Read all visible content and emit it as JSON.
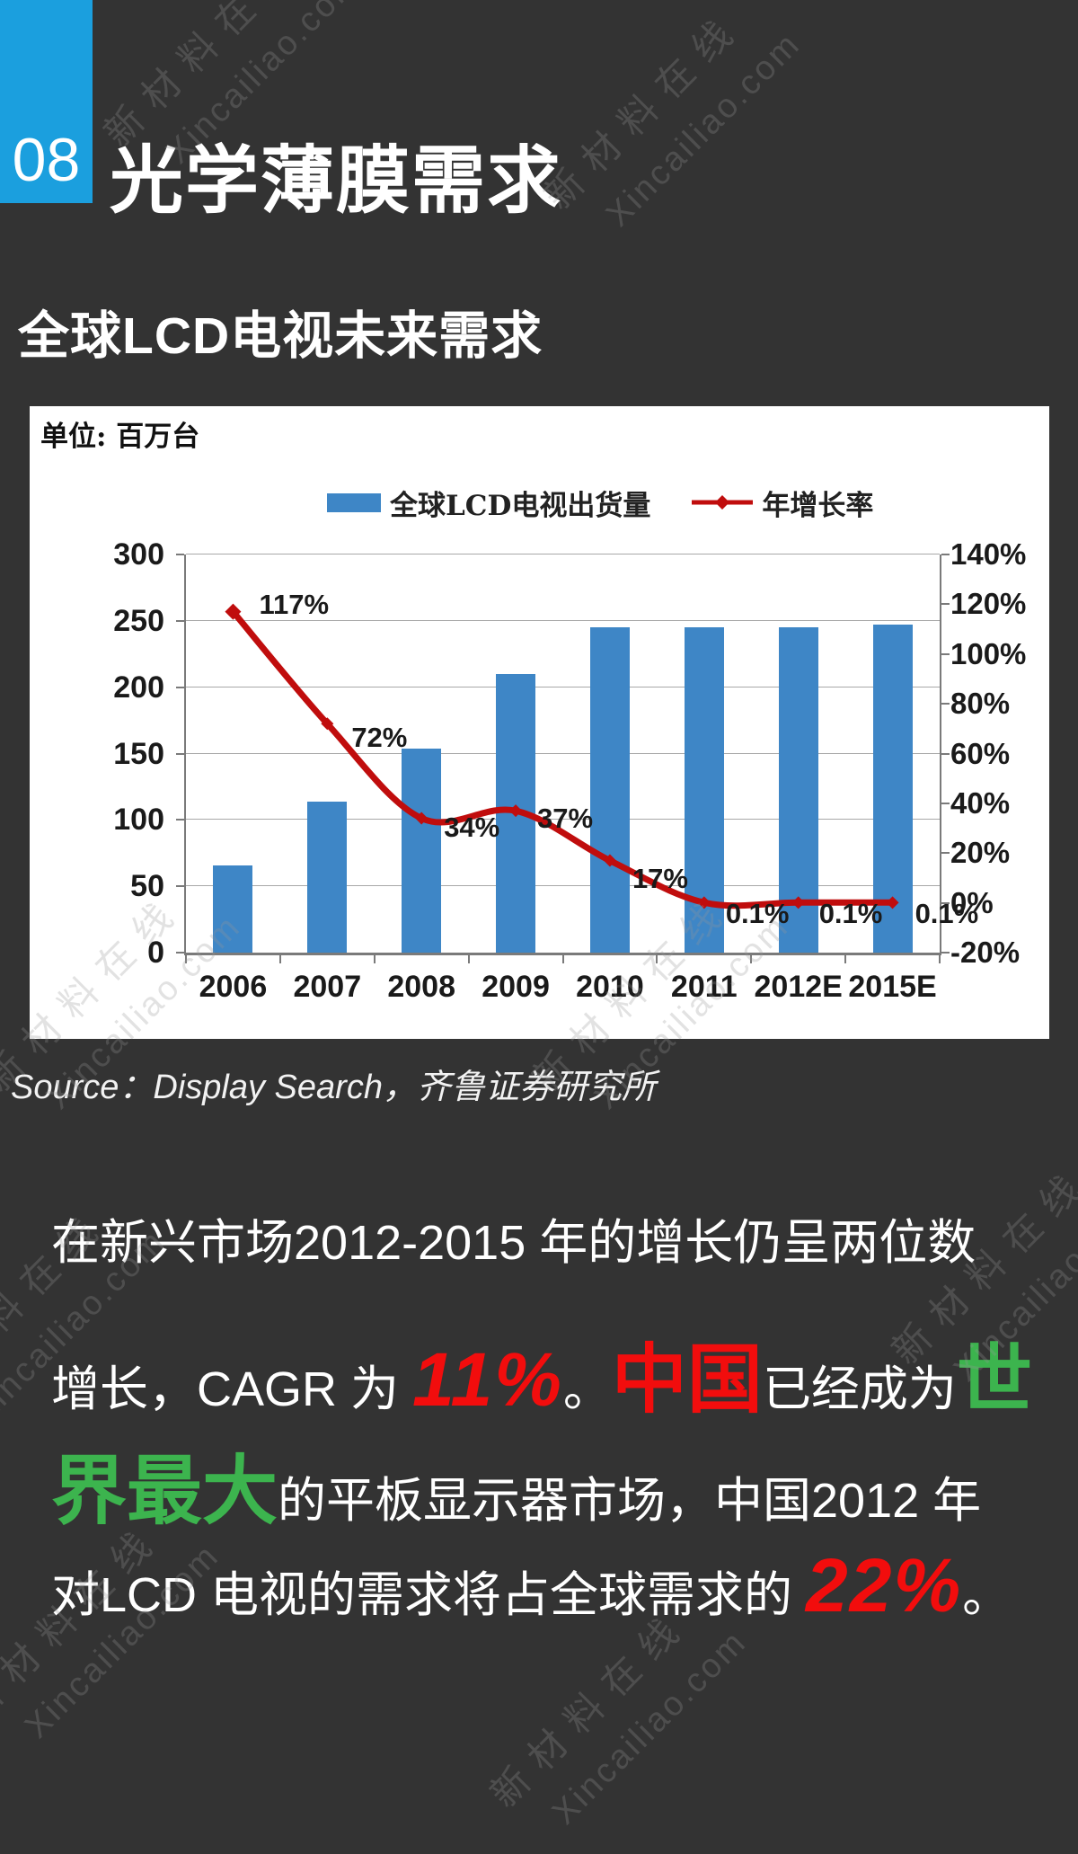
{
  "page": {
    "bg": "#333333",
    "accent_blue": "#1b9fde"
  },
  "header": {
    "number": "08",
    "title": "光学薄膜需求"
  },
  "subtitle": "全球LCD电视未来需求",
  "chart": {
    "unit_label": "单位: 百万台",
    "legend": {
      "bar_label": "全球LCD电视出货量",
      "line_label": "年增长率"
    },
    "colors": {
      "bar": "#3e86c6",
      "line": "#c00d0d",
      "panel": "#ffffff"
    }
  },
  "chart_data": {
    "type": "bar+line",
    "title": "全球LCD电视未来需求",
    "unit": "百万台",
    "categories": [
      "2006",
      "2007",
      "2008",
      "2009",
      "2010",
      "2011",
      "2012E",
      "2015E"
    ],
    "series": [
      {
        "name": "全球LCD电视出货量",
        "type": "bar",
        "axis": "left",
        "color": "#3e86c6",
        "values": [
          66,
          114,
          154,
          210,
          245,
          245,
          245,
          247
        ]
      },
      {
        "name": "年增长率",
        "type": "line",
        "axis": "right",
        "color": "#c00d0d",
        "unit": "%",
        "values": [
          117,
          72,
          34,
          37,
          17,
          0.1,
          0.1,
          0.1
        ],
        "labels": [
          "117%",
          "72%",
          "34%",
          "37%",
          "17%",
          "0.1%",
          "0.1%",
          "0.1%"
        ]
      }
    ],
    "left_axis": {
      "range": [
        0,
        300
      ],
      "ticks": [
        300,
        250,
        200,
        150,
        100,
        50,
        0
      ]
    },
    "right_axis": {
      "range": [
        -20,
        140
      ],
      "ticks": [
        "140%",
        "120%",
        "100%",
        "80%",
        "60%",
        "40%",
        "20%",
        "0%",
        "-20%"
      ]
    },
    "grid": true,
    "legend_position": "top-center"
  },
  "source": "Source：Display Search，齐鲁证券研究所",
  "body": {
    "line1": "在新兴市场2012-2015 年的增长仍呈两位数",
    "line2": {
      "t1": "增长，CAGR 为 ",
      "hl1": "11%",
      "t2": "。",
      "hl2": "中国",
      "t3": "已经成为",
      "hl3": "世"
    },
    "line3": {
      "hl1": "界最大",
      "t1": "的平板显示器市场，中国2012 年"
    },
    "line4": {
      "t1": "对LCD 电视的需求将占全球需求的 ",
      "hl1": "22%",
      "t2": "。"
    }
  },
  "watermark": {
    "cn": "新材料在线",
    "en": "Xincailiao.com"
  }
}
